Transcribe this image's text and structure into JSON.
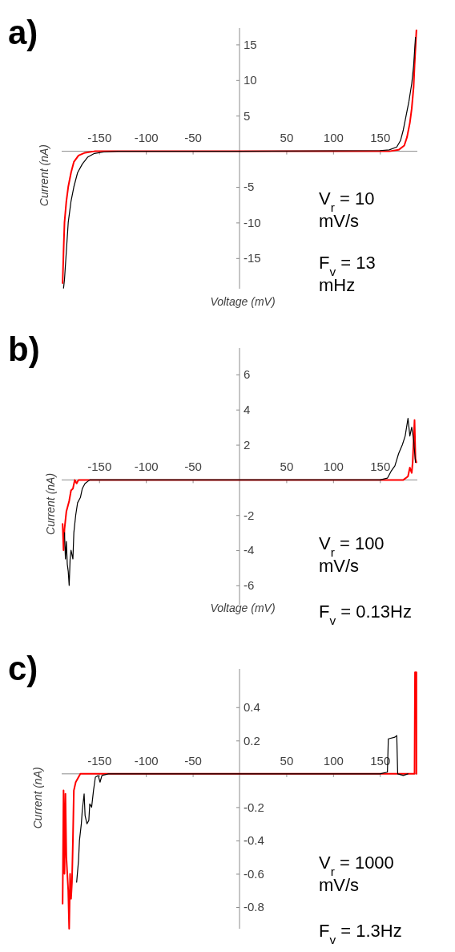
{
  "chart_data": [
    {
      "type": "line",
      "title": "a)",
      "xlabel": "Voltage (mV)",
      "ylabel": "Current (nA)",
      "xlim": [
        -190,
        190
      ],
      "ylim": [
        -19.3,
        17.3
      ],
      "xticks": [
        -150,
        -100,
        -50,
        50,
        100,
        150
      ],
      "yticks": [
        -15,
        -10,
        -5,
        5,
        10,
        15
      ],
      "annotations": [
        "V$_{r}$ = 10 mV/s",
        "F$_{v}$ = 13 mHz"
      ],
      "series": [
        {
          "color": "#ff0000",
          "x": [
            -189,
            -188,
            -187,
            -185,
            -183,
            -180,
            -177,
            -172,
            -165,
            -155,
            -140,
            0,
            160,
            170,
            176,
            179,
            182,
            184,
            186,
            187,
            189
          ],
          "values": [
            -18.5,
            -14,
            -10,
            -7,
            -5,
            -3,
            -1.5,
            -0.6,
            -0.2,
            0,
            0,
            0,
            0,
            0.2,
            0.8,
            2,
            4,
            6,
            9,
            12,
            17
          ]
        },
        {
          "color": "#000000",
          "x": [
            -188,
            -187,
            -185,
            -183,
            -180,
            -177,
            -173,
            -168,
            -162,
            -155,
            -145,
            -130,
            0,
            150,
            160,
            168,
            172,
            175,
            178,
            181,
            184,
            186,
            188
          ],
          "values": [
            -19.2,
            -18,
            -14,
            -10,
            -7,
            -5,
            -3,
            -1.8,
            -0.8,
            -0.3,
            -0.1,
            0,
            0,
            0.1,
            0.2,
            0.6,
            1.5,
            3,
            5,
            7,
            9.5,
            12,
            16
          ]
        }
      ]
    },
    {
      "type": "line",
      "title": "b)",
      "xlabel": "Voltage (mV)",
      "ylabel": "Current (nA)",
      "xlim": [
        -190,
        190
      ],
      "ylim": [
        -7.1,
        7.5
      ],
      "xticks": [
        -150,
        -100,
        -50,
        50,
        100,
        150
      ],
      "yticks": [
        -6,
        -4,
        -2,
        2,
        4,
        6
      ],
      "annotations": [
        "V$_{r}$ = 100 mV/s",
        "F$_{v}$ = 0.13Hz"
      ],
      "series": [
        {
          "color": "#ff0000",
          "x": [
            -189,
            -188,
            -187,
            -185,
            -182,
            -180,
            -178,
            -176,
            -174,
            -172,
            0,
            175,
            180,
            182,
            184,
            185,
            187,
            188,
            189
          ],
          "values": [
            -2.5,
            -4,
            -2.8,
            -1.8,
            -1.2,
            -0.6,
            -0.5,
            0,
            -0.2,
            0,
            0,
            0,
            0.2,
            0.7,
            0.4,
            1,
            3.4,
            1.2,
            1
          ]
        },
        {
          "color": "#000000",
          "x": [
            -187,
            -186,
            -185,
            -184,
            -183,
            -182,
            -181,
            -180,
            -178,
            -177,
            -175,
            -173,
            -170,
            -168,
            -165,
            -160,
            0,
            150,
            158,
            162,
            166,
            170,
            174,
            177,
            180,
            182,
            184,
            186,
            188
          ],
          "values": [
            -3,
            -4.5,
            -3.5,
            -4.8,
            -5.2,
            -6,
            -4.5,
            -4,
            -4.5,
            -3,
            -2,
            -1.3,
            -1,
            -0.5,
            -0.2,
            0,
            0,
            0,
            0.1,
            0.5,
            0.8,
            1.5,
            2,
            2.5,
            3.5,
            2.5,
            3,
            2.3,
            1
          ]
        }
      ]
    },
    {
      "type": "line",
      "title": "c)",
      "ylabel": "Current (nA)",
      "xlim": [
        -190,
        190
      ],
      "ylim": [
        -0.93,
        0.63
      ],
      "xticks": [
        -150,
        -100,
        -50,
        50,
        100,
        150
      ],
      "yticks": [
        -0.8,
        -0.6,
        -0.4,
        -0.2,
        0.2,
        0.4
      ],
      "annotations": [
        "V$_{r}$ = 1000 mV/s",
        "F$_{v}$ = 1.3Hz"
      ],
      "series": [
        {
          "color": "#ff0000",
          "x": [
            -189,
            -188,
            -187,
            -186,
            -185,
            -183,
            -182,
            -181,
            -180,
            -179,
            -178,
            -177,
            -175,
            -170,
            0,
            187,
            187.5,
            189,
            189
          ],
          "values": [
            -0.78,
            -0.1,
            -0.6,
            -0.12,
            -0.5,
            -0.7,
            -0.93,
            -0.6,
            -0.75,
            -0.65,
            -0.4,
            -0.1,
            -0.05,
            0,
            0,
            0,
            0.61,
            0.61,
            0
          ]
        },
        {
          "color": "#000000",
          "x": [
            -174,
            -172,
            -171,
            -169,
            -168,
            -166,
            -165,
            -163,
            -161,
            -160,
            -158,
            -156,
            -154,
            -151,
            -149,
            -147,
            -140,
            150,
            158,
            159,
            166,
            168,
            169,
            175,
            180
          ],
          "values": [
            -0.65,
            -0.52,
            -0.4,
            -0.3,
            -0.22,
            -0.12,
            -0.25,
            -0.3,
            -0.28,
            -0.18,
            -0.2,
            -0.1,
            -0.02,
            -0.01,
            -0.05,
            -0.01,
            0,
            0,
            0.01,
            0.21,
            0.22,
            0.23,
            0,
            -0.01,
            0
          ]
        }
      ]
    }
  ]
}
